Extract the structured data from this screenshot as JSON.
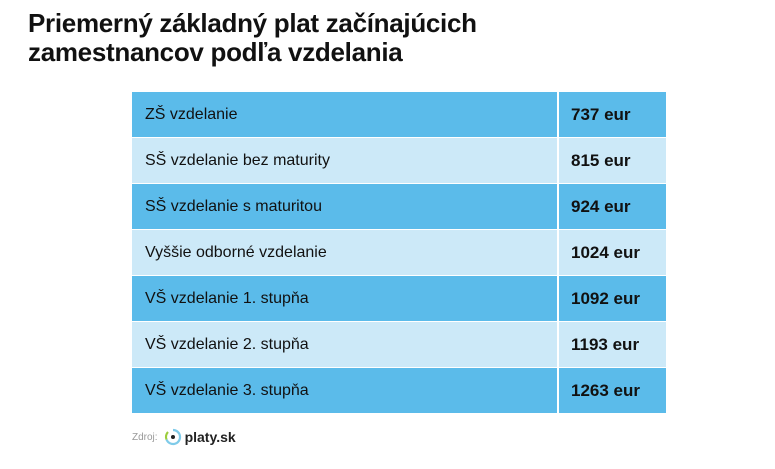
{
  "title_line1": "Priemerný základný plat začínajúcich",
  "title_line2": "zamestnancov podľa vzdelania",
  "rows": [
    {
      "label": "ZŠ vzdelanie",
      "value": "737 eur"
    },
    {
      "label": "SŠ vzdelanie bez maturity",
      "value": "815 eur"
    },
    {
      "label": "SŠ vzdelanie s maturitou",
      "value": "924 eur"
    },
    {
      "label": "Vyššie odborné vzdelanie",
      "value": "1024 eur"
    },
    {
      "label": "VŠ vzdelanie 1. stupňa",
      "value": "1092 eur"
    },
    {
      "label": "VŠ vzdelanie 2. stupňa",
      "value": "1193 eur"
    },
    {
      "label": "VŠ vzdelanie 3. stupňa",
      "value": "1263 eur"
    }
  ],
  "source_label": "Zdroj:",
  "source_name": "platy.sk",
  "colors": {
    "dark_row": "#5bbbea",
    "light_row": "#cce9f8"
  }
}
